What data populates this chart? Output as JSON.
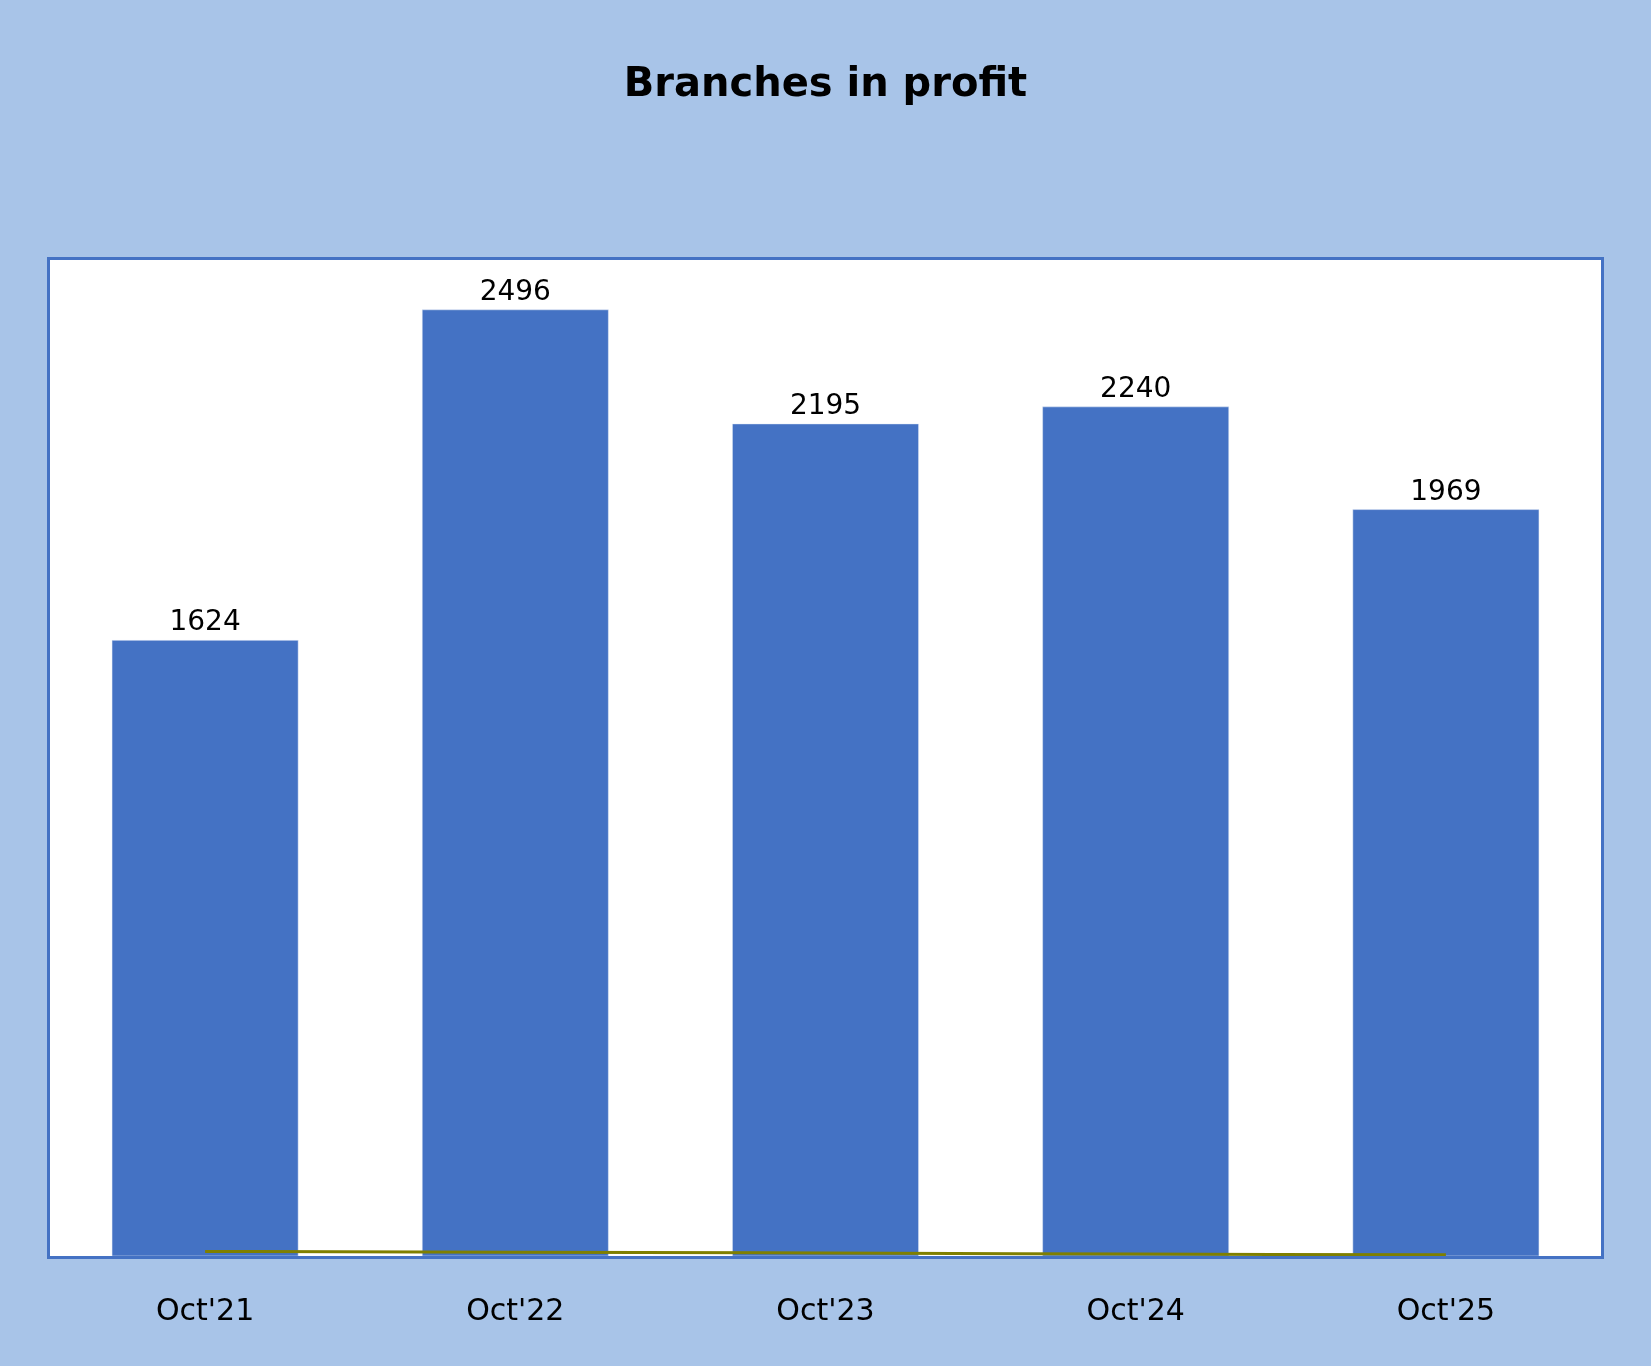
{
  "chart_data": {
    "type": "bar",
    "title": "Branches in profit",
    "categories": [
      "Oct'21",
      "Oct'22",
      "Oct'23",
      "Oct'24",
      "Oct'25"
    ],
    "series": [
      {
        "color": "#4472c4",
        "values": [
          1624,
          2496,
          2195,
          2240,
          1969
        ],
        "data_labels": true
      },
      {
        "type": "line",
        "color": "#7f7f00",
        "values": [
          12,
          10,
          8,
          5,
          3
        ]
      }
    ]
  }
}
